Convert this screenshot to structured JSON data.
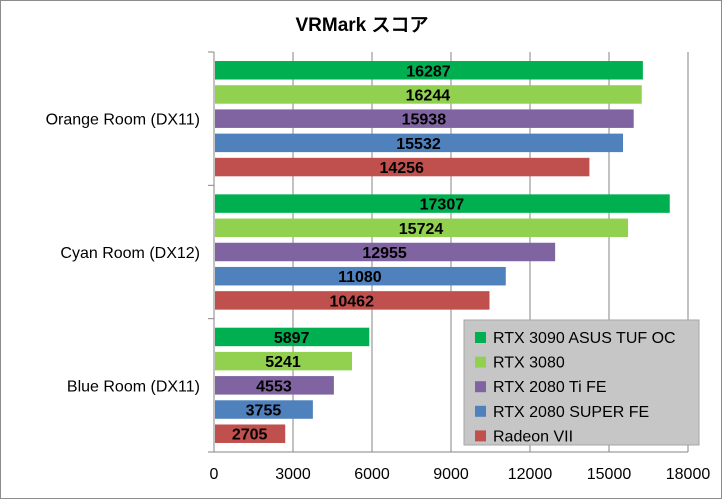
{
  "chart_data": {
    "type": "bar",
    "orientation": "horizontal",
    "title": "VRMark スコア",
    "xlabel": "",
    "ylabel": "",
    "categories": [
      "Orange Room (DX11)",
      "Cyan Room (DX12)",
      "Blue Room (DX11)"
    ],
    "xlim": [
      0,
      18000
    ],
    "xticks": [
      0,
      3000,
      6000,
      9000,
      12000,
      15000,
      18000
    ],
    "grid": true,
    "legend_position": "bottom-right",
    "series": [
      {
        "name": "RTX 3090 ASUS TUF OC",
        "color": "#00b050",
        "values": [
          16287,
          17307,
          5897
        ]
      },
      {
        "name": "RTX 3080",
        "color": "#92d050",
        "values": [
          16244,
          15724,
          5241
        ]
      },
      {
        "name": "RTX 2080 Ti FE",
        "color": "#8064a2",
        "values": [
          15938,
          12955,
          4553
        ]
      },
      {
        "name": "RTX 2080 SUPER FE",
        "color": "#4f81bd",
        "values": [
          15532,
          11080,
          3755
        ]
      },
      {
        "name": "Radeon VII",
        "color": "#c0504d",
        "values": [
          14256,
          10462,
          2705
        ]
      }
    ]
  }
}
